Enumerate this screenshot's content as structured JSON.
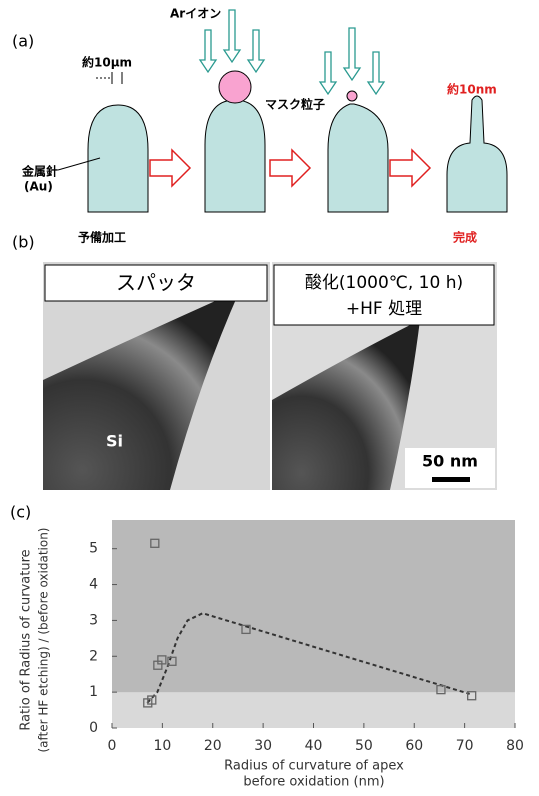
{
  "panel_a": {
    "label": "(a)",
    "ion": "Arイオン",
    "size_before": "約10μm",
    "mask": "マスク粒子",
    "size_after": "約10nm",
    "needle": [
      "金属針",
      "(Au)"
    ],
    "start": "予備加工",
    "end": "完成"
  },
  "panel_b": {
    "label": "(b)",
    "left_caption": "スパッタ",
    "right_caption": [
      "酸化(1000℃, 10 h)",
      "+HF 処理"
    ],
    "material": "Si",
    "scale": "50 nm"
  },
  "chart_data": {
    "type": "scatter",
    "panel_label": "(c)",
    "x_label": [
      "Radius of curvature of apex",
      "before oxidation (nm)"
    ],
    "y_label": [
      "Ratio of Radius of curvature",
      "(after HF etching) / (before oxidation)"
    ],
    "x": [
      7.1,
      7.9,
      11.9,
      8.5,
      9.1,
      9.9,
      26.6,
      65.3,
      71.4
    ],
    "values": [
      0.7,
      0.78,
      1.86,
      5.15,
      1.75,
      1.9,
      2.75,
      1.07,
      0.9
    ],
    "trend": {
      "x": [
        7,
        9,
        11,
        13,
        15,
        18,
        71
      ],
      "values": [
        0.7,
        1.0,
        1.7,
        2.5,
        3.0,
        3.2,
        0.95
      ]
    },
    "reference": 1,
    "color": "#666666",
    "xlim": [
      0,
      80
    ],
    "ylim": [
      0,
      5.8
    ],
    "xticks": [
      0,
      10,
      20,
      30,
      40,
      50,
      60,
      70,
      80
    ],
    "yticks": [
      0,
      1,
      2,
      3,
      4,
      5
    ]
  }
}
